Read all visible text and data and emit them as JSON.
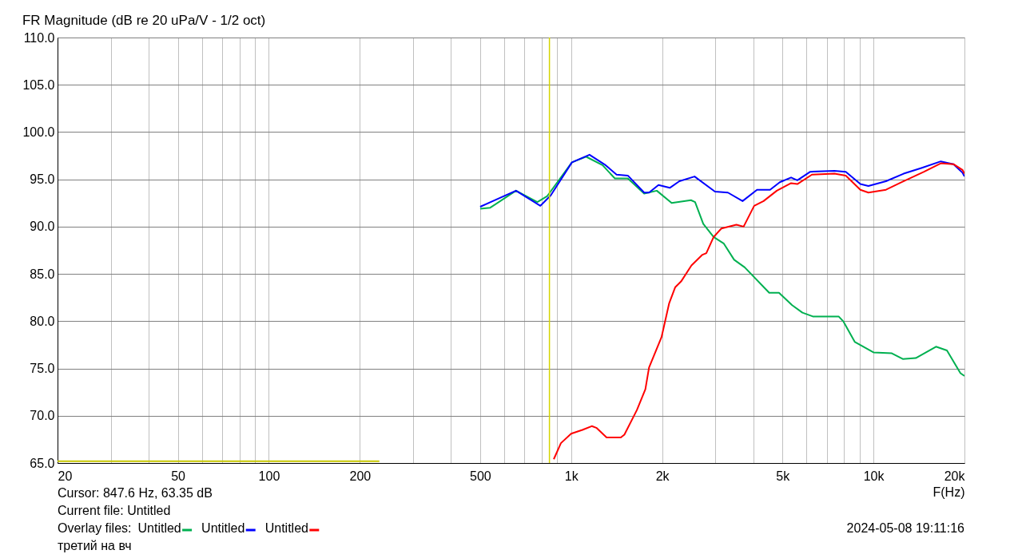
{
  "chart_data": {
    "type": "line",
    "title": "FR Magnitude (dB re 20 uPa/V - 1/2 oct)",
    "xlabel": "F(Hz)",
    "log": "x",
    "grid": true,
    "legend": "bottom left",
    "legend_title": "Overlay files:",
    "marker": "none",
    "line_style": "solid",
    "xlim": [
      20,
      20000
    ],
    "xticks": [
      20,
      {
        "value": 30,
        "label": null
      },
      {
        "value": 40,
        "label": null
      },
      50,
      {
        "value": 60,
        "label": null
      },
      {
        "value": 70,
        "label": null
      },
      {
        "value": 80,
        "label": null
      },
      {
        "value": 90,
        "label": null
      },
      100,
      200,
      {
        "value": 300,
        "label": null
      },
      {
        "value": 400,
        "label": null
      },
      500,
      {
        "value": 600,
        "label": null
      },
      {
        "value": 700,
        "label": null
      },
      {
        "value": 800,
        "label": null
      },
      {
        "value": 900,
        "label": null
      },
      {
        "value": 1000,
        "label": "1k"
      },
      {
        "value": 2000,
        "label": "2k"
      },
      {
        "value": 3000,
        "label": null
      },
      {
        "value": 4000,
        "label": null
      },
      {
        "value": 5000,
        "label": "5k"
      },
      {
        "value": 6000,
        "label": null
      },
      {
        "value": 7000,
        "label": null
      },
      {
        "value": 8000,
        "label": null
      },
      {
        "value": 9000,
        "label": null
      },
      {
        "value": 10000,
        "label": "10k"
      },
      {
        "value": 20000,
        "label": "20k"
      }
    ],
    "ylim": [
      65,
      110
    ],
    "yticks": [
      {
        "value": 65,
        "label": "65.0"
      },
      {
        "value": 70,
        "label": "70.0"
      },
      {
        "value": 75,
        "label": "75.0"
      },
      {
        "value": 80,
        "label": "80.0"
      },
      {
        "value": 85,
        "label": "85.0"
      },
      {
        "value": 90,
        "label": "90.0"
      },
      {
        "value": 95,
        "label": "95.0"
      },
      {
        "value": 100,
        "label": "100.0"
      },
      {
        "value": 105,
        "label": "105.0"
      },
      {
        "value": 110,
        "label": "110.0"
      }
    ],
    "series": [
      {
        "name": "Untitled",
        "color": "#00b050",
        "x": [
          500,
          540,
          657,
          773,
          832,
          1006,
          1120,
          1270,
          1395,
          1540,
          1744,
          1920,
          2150,
          2490,
          2570,
          2735,
          2960,
          3200,
          3460,
          3750,
          4520,
          4870,
          5380,
          5820,
          6300,
          7670,
          7940,
          8680,
          10000,
          11500,
          12500,
          13800,
          16100,
          17500,
          19400,
          20000
        ],
        "values": [
          91.9,
          92.0,
          93.8,
          92.6,
          93.2,
          96.8,
          97.4,
          96.5,
          95.1,
          95.1,
          93.5,
          93.8,
          92.5,
          92.8,
          92.6,
          90.3,
          88.9,
          88.2,
          86.5,
          85.7,
          83.0,
          83.0,
          81.7,
          80.9,
          80.5,
          80.5,
          80.0,
          77.8,
          76.7,
          76.6,
          76.0,
          76.1,
          77.3,
          76.9,
          74.5,
          74.2
        ]
      },
      {
        "name": "Untitled",
        "color": "#0000ff",
        "x": [
          500,
          657,
          791,
          856,
          1006,
          1150,
          1300,
          1413,
          1540,
          1744,
          1810,
          1945,
          2120,
          2280,
          2560,
          2990,
          3300,
          3690,
          4120,
          4550,
          4900,
          5340,
          5600,
          6180,
          7430,
          8100,
          9050,
          9620,
          11000,
          12580,
          14400,
          16700,
          18400,
          19700,
          20000
        ],
        "values": [
          92.1,
          93.8,
          92.2,
          93.3,
          96.8,
          97.6,
          96.5,
          95.5,
          95.4,
          93.6,
          93.6,
          94.4,
          94.1,
          94.8,
          95.3,
          93.7,
          93.6,
          92.7,
          93.9,
          93.9,
          94.7,
          95.2,
          94.9,
          95.8,
          95.9,
          95.8,
          94.5,
          94.3,
          94.8,
          95.6,
          96.2,
          96.9,
          96.6,
          95.7,
          95.3
        ]
      },
      {
        "name": "Untitled",
        "color": "#ff0000",
        "x": [
          876,
          925,
          1000,
          1090,
          1170,
          1215,
          1310,
          1460,
          1500,
          1650,
          1760,
          1810,
          1990,
          2110,
          2210,
          2310,
          2500,
          2710,
          2800,
          2960,
          3140,
          3520,
          3720,
          4030,
          4330,
          4790,
          5340,
          5600,
          6260,
          7430,
          8100,
          9050,
          9620,
          11000,
          12400,
          14700,
          16700,
          18400,
          19700,
          20000
        ],
        "values": [
          65.4,
          67.1,
          68.1,
          68.5,
          68.9,
          68.7,
          67.7,
          67.7,
          68.0,
          70.6,
          72.8,
          75.1,
          78.3,
          81.9,
          83.6,
          84.2,
          85.9,
          87.0,
          87.2,
          88.9,
          89.8,
          90.2,
          90.0,
          92.2,
          92.7,
          93.8,
          94.6,
          94.5,
          95.5,
          95.6,
          95.4,
          93.9,
          93.6,
          93.9,
          94.7,
          95.8,
          96.7,
          96.6,
          96.0,
          95.6
        ]
      },
      {
        "color": "#c8c800",
        "x": [
          20,
          232
        ],
        "values": [
          65.2,
          65.2
        ]
      }
    ],
    "ref_lines": [
      {
        "axis": "x",
        "value": 847.6,
        "label": null,
        "color": "#d4d400"
      }
    ],
    "annotations": [
      "Cursor: 847.6 Hz, 63.35 dB",
      "Current file: Untitled",
      "третий на вч",
      "2024-05-08  19:11:16"
    ]
  }
}
